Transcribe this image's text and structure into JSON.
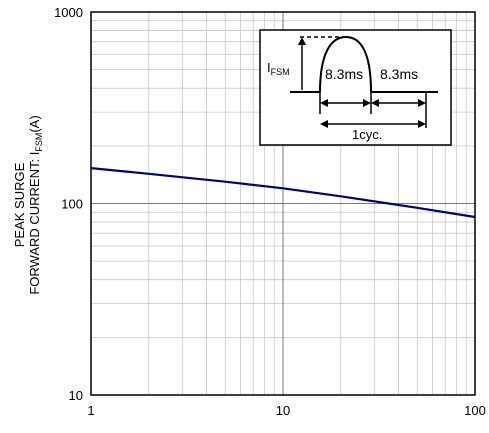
{
  "chart_data": {
    "type": "line",
    "x_scale": "log",
    "y_scale": "log",
    "xlim": [
      1,
      100
    ],
    "ylim": [
      10,
      1000
    ],
    "x_ticks": [
      1,
      10,
      100
    ],
    "x_tick_labels": [
      "1",
      "10",
      "100"
    ],
    "y_ticks": [
      10,
      100,
      1000
    ],
    "y_tick_labels": [
      "10",
      "100",
      "1000"
    ],
    "ylabel_line1": "PEAK SURGE",
    "ylabel_line2_main": "FORWARD CURRENT: I",
    "ylabel_line2_sub": "FSM",
    "ylabel_line2_end": "(A)",
    "xlabel": "",
    "grid": true,
    "series": [
      {
        "color": "#000080",
        "x": [
          1,
          2,
          5,
          10,
          20,
          50,
          100
        ],
        "y": [
          153,
          143,
          130,
          120,
          109,
          95,
          85
        ]
      }
    ],
    "inset": {
      "label_main": "I",
      "label_sub": "FSM",
      "pulse_label": "8.3ms",
      "gap_label": "8.3ms",
      "cycle_label": "1cyc."
    }
  }
}
